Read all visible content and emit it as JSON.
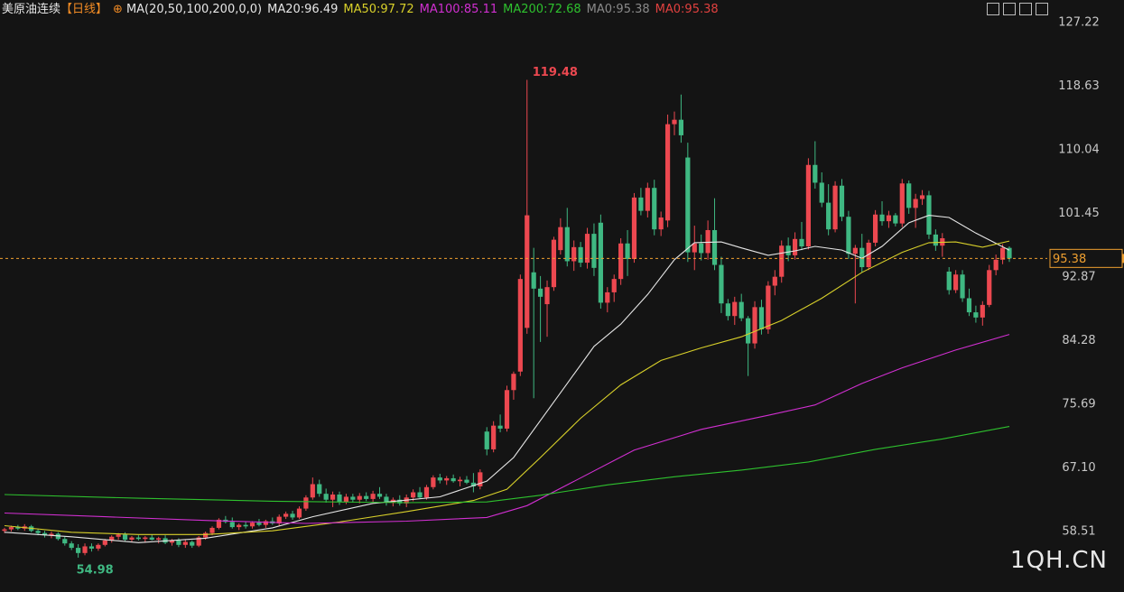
{
  "chart_data": {
    "type": "candlestick",
    "title": "美原油连续",
    "period": "【日线】",
    "indicator": "MA(20,50,100,200,0,0)",
    "up_color": "#ec4850",
    "down_color": "#3fb882",
    "ylim": [
      50.34,
      127.83
    ],
    "yticks": [
      58.51,
      {
        "value": 67.1,
        "label": "67.10"
      },
      75.69,
      84.28,
      92.87,
      101.45,
      110.04,
      118.63,
      127.22
    ],
    "candles": [
      [
        58.6,
        59.0,
        58.3,
        58.8
      ],
      [
        58.8,
        59.3,
        58.5,
        59.1
      ],
      [
        59.1,
        59.4,
        58.7,
        58.9
      ],
      [
        58.9,
        59.5,
        58.6,
        59.2
      ],
      [
        59.2,
        59.4,
        58.4,
        58.6
      ],
      [
        58.6,
        58.9,
        58.0,
        58.3
      ],
      [
        58.3,
        58.6,
        57.7,
        58.0
      ],
      [
        58.0,
        58.5,
        57.6,
        58.2
      ],
      [
        58.2,
        58.4,
        57.3,
        57.5
      ],
      [
        57.5,
        57.8,
        56.6,
        56.9
      ],
      [
        56.9,
        57.2,
        56.0,
        56.3
      ],
      [
        56.3,
        56.8,
        54.98,
        55.6
      ],
      [
        55.6,
        56.9,
        55.3,
        56.5
      ],
      [
        56.5,
        56.9,
        55.8,
        56.2
      ],
      [
        56.2,
        56.9,
        55.9,
        56.7
      ],
      [
        56.7,
        57.5,
        56.5,
        57.3
      ],
      [
        57.3,
        58.0,
        57.0,
        57.8
      ],
      [
        57.8,
        58.3,
        57.4,
        58.1
      ],
      [
        58.1,
        58.4,
        57.2,
        57.4
      ],
      [
        57.4,
        57.9,
        57.1,
        57.7
      ],
      [
        57.7,
        58.0,
        57.3,
        57.5
      ],
      [
        57.5,
        57.9,
        57.0,
        57.7
      ],
      [
        57.7,
        58.1,
        57.3,
        57.4
      ],
      [
        57.4,
        57.8,
        56.9,
        57.6
      ],
      [
        57.6,
        58.0,
        56.8,
        57.0
      ],
      [
        57.0,
        57.5,
        56.6,
        57.3
      ],
      [
        57.3,
        57.6,
        56.4,
        56.7
      ],
      [
        56.7,
        57.4,
        56.3,
        57.1
      ],
      [
        57.1,
        57.3,
        56.3,
        56.6
      ],
      [
        56.6,
        57.9,
        56.4,
        57.7
      ],
      [
        57.7,
        58.5,
        57.4,
        58.3
      ],
      [
        58.3,
        59.2,
        58.0,
        59.0
      ],
      [
        59.0,
        60.3,
        58.8,
        60.1
      ],
      [
        60.1,
        60.6,
        59.6,
        59.8
      ],
      [
        59.8,
        60.4,
        58.9,
        59.1
      ],
      [
        59.1,
        59.6,
        58.7,
        59.4
      ],
      [
        59.4,
        59.8,
        58.9,
        59.2
      ],
      [
        59.2,
        59.9,
        58.9,
        59.7
      ],
      [
        59.7,
        60.2,
        59.2,
        59.4
      ],
      [
        59.4,
        60.1,
        59.0,
        59.9
      ],
      [
        59.9,
        60.4,
        59.4,
        59.6
      ],
      [
        59.6,
        60.8,
        59.3,
        60.5
      ],
      [
        60.5,
        61.2,
        60.2,
        60.9
      ],
      [
        60.9,
        61.3,
        60.1,
        60.4
      ],
      [
        60.4,
        61.9,
        60.2,
        61.6
      ],
      [
        61.6,
        63.4,
        61.3,
        63.1
      ],
      [
        63.1,
        65.8,
        62.8,
        64.9
      ],
      [
        64.9,
        65.5,
        63.2,
        63.6
      ],
      [
        63.6,
        64.3,
        62.4,
        62.8
      ],
      [
        62.8,
        63.9,
        61.8,
        63.5
      ],
      [
        63.5,
        63.9,
        62.1,
        62.5
      ],
      [
        62.5,
        63.6,
        62.2,
        63.2
      ],
      [
        63.2,
        63.6,
        62.4,
        62.8
      ],
      [
        62.8,
        63.7,
        62.3,
        63.3
      ],
      [
        63.3,
        63.8,
        62.6,
        62.9
      ],
      [
        62.9,
        64.0,
        62.5,
        63.6
      ],
      [
        63.6,
        64.5,
        62.9,
        63.2
      ],
      [
        63.2,
        63.6,
        62.0,
        62.4
      ],
      [
        62.4,
        63.1,
        61.9,
        62.8
      ],
      [
        62.8,
        63.4,
        62.0,
        62.3
      ],
      [
        62.3,
        63.5,
        61.8,
        63.1
      ],
      [
        63.1,
        64.2,
        62.6,
        63.8
      ],
      [
        63.8,
        64.5,
        62.9,
        63.1
      ],
      [
        63.1,
        64.8,
        62.8,
        64.5
      ],
      [
        64.5,
        66.1,
        64.2,
        65.8
      ],
      [
        65.8,
        66.3,
        65.0,
        65.4
      ],
      [
        65.4,
        66.0,
        64.8,
        65.7
      ],
      [
        65.7,
        66.2,
        65.1,
        65.3
      ],
      [
        65.3,
        65.9,
        64.6,
        65.5
      ],
      [
        65.5,
        66.0,
        64.9,
        65.1
      ],
      [
        65.1,
        66.4,
        63.8,
        64.6
      ],
      [
        64.6,
        66.9,
        64.2,
        66.5
      ],
      [
        72.0,
        72.6,
        68.8,
        69.6
      ],
      [
        69.6,
        73.4,
        69.2,
        72.8
      ],
      [
        72.8,
        74.3,
        71.9,
        72.4
      ],
      [
        72.4,
        78.2,
        72.0,
        77.6
      ],
      [
        77.6,
        80.1,
        76.3,
        79.8
      ],
      [
        80.1,
        93.2,
        79.5,
        92.6
      ],
      [
        86.0,
        119.48,
        85.2,
        101.2
      ],
      [
        93.5,
        96.8,
        76.5,
        91.3
      ],
      [
        91.3,
        93.0,
        84.1,
        90.2
      ],
      [
        89.2,
        92.4,
        84.8,
        91.5
      ],
      [
        91.5,
        98.3,
        91.0,
        97.9
      ],
      [
        96.5,
        100.8,
        95.9,
        99.6
      ],
      [
        99.6,
        102.2,
        94.3,
        95.0
      ],
      [
        95.0,
        97.8,
        93.7,
        96.9
      ],
      [
        96.9,
        97.6,
        94.2,
        94.8
      ],
      [
        94.8,
        99.5,
        94.0,
        98.7
      ],
      [
        98.7,
        100.1,
        93.0,
        94.1
      ],
      [
        100.2,
        101.3,
        88.6,
        89.4
      ],
      [
        89.4,
        91.5,
        88.1,
        90.8
      ],
      [
        90.8,
        93.2,
        89.5,
        92.6
      ],
      [
        92.6,
        98.1,
        91.8,
        97.4
      ],
      [
        97.4,
        99.2,
        93.0,
        95.3
      ],
      [
        95.3,
        104.2,
        94.8,
        103.6
      ],
      [
        103.6,
        104.9,
        101.2,
        101.8
      ],
      [
        101.8,
        105.6,
        100.9,
        104.9
      ],
      [
        104.9,
        106.0,
        98.5,
        99.3
      ],
      [
        99.3,
        101.7,
        98.4,
        100.9
      ],
      [
        100.5,
        114.8,
        99.6,
        113.5
      ],
      [
        113.5,
        115.2,
        112.0,
        114.1
      ],
      [
        114.1,
        117.5,
        111.0,
        112.0
      ],
      [
        109.0,
        111.0,
        94.9,
        96.2
      ],
      [
        96.2,
        99.8,
        93.8,
        97.4
      ],
      [
        97.4,
        98.6,
        95.1,
        96.1
      ],
      [
        96.1,
        100.5,
        95.2,
        99.2
      ],
      [
        99.2,
        103.5,
        93.8,
        94.5
      ],
      [
        94.5,
        95.6,
        88.0,
        89.3
      ],
      [
        89.3,
        89.9,
        87.0,
        87.6
      ],
      [
        87.6,
        90.2,
        86.4,
        89.5
      ],
      [
        89.5,
        90.6,
        86.9,
        87.3
      ],
      [
        87.3,
        87.6,
        79.5,
        83.9
      ],
      [
        83.9,
        89.6,
        83.2,
        88.8
      ],
      [
        88.8,
        89.8,
        85.1,
        85.8
      ],
      [
        85.8,
        92.3,
        85.2,
        91.7
      ],
      [
        91.7,
        93.8,
        90.4,
        92.9
      ],
      [
        92.9,
        97.8,
        92.1,
        97.1
      ],
      [
        97.1,
        98.2,
        95.0,
        95.8
      ],
      [
        95.8,
        98.9,
        95.2,
        98.0
      ],
      [
        98.0,
        100.3,
        96.5,
        97.0
      ],
      [
        97.0,
        108.9,
        96.6,
        108.0
      ],
      [
        108.0,
        111.2,
        104.8,
        105.6
      ],
      [
        105.6,
        107.0,
        102.3,
        102.9
      ],
      [
        102.9,
        105.4,
        98.5,
        99.3
      ],
      [
        99.3,
        105.8,
        98.9,
        105.2
      ],
      [
        105.2,
        106.1,
        100.4,
        101.0
      ],
      [
        101.0,
        101.8,
        95.3,
        96.0
      ],
      [
        96.0,
        97.2,
        89.3,
        96.8
      ],
      [
        96.8,
        98.7,
        93.5,
        94.2
      ],
      [
        94.2,
        97.9,
        93.8,
        97.5
      ],
      [
        97.5,
        101.9,
        97.0,
        101.3
      ],
      [
        101.3,
        103.1,
        99.8,
        100.4
      ],
      [
        100.4,
        101.8,
        99.5,
        101.2
      ],
      [
        101.2,
        101.5,
        99.7,
        100.1
      ],
      [
        100.1,
        106.1,
        99.6,
        105.5
      ],
      [
        105.5,
        105.9,
        101.4,
        102.2
      ],
      [
        102.2,
        104.1,
        99.5,
        103.4
      ],
      [
        103.4,
        104.6,
        102.6,
        103.9
      ],
      [
        103.9,
        104.5,
        98.0,
        98.6
      ],
      [
        98.6,
        99.3,
        96.4,
        97.1
      ],
      [
        97.1,
        98.8,
        95.6,
        98.1
      ],
      [
        93.6,
        94.2,
        90.5,
        91.1
      ],
      [
        91.1,
        93.8,
        90.7,
        93.2
      ],
      [
        93.2,
        93.8,
        89.5,
        90.0
      ],
      [
        90.0,
        91.3,
        87.6,
        88.1
      ],
      [
        88.1,
        89.0,
        86.7,
        87.4
      ],
      [
        87.4,
        89.6,
        86.3,
        89.1
      ],
      [
        89.1,
        94.5,
        88.8,
        93.8
      ],
      [
        93.8,
        95.9,
        93.1,
        95.2
      ],
      [
        95.2,
        97.3,
        94.6,
        96.8
      ],
      [
        96.8,
        97.0,
        94.9,
        95.38
      ]
    ],
    "series": [
      {
        "name": "MA20:96.49",
        "color": "#e6e6e6",
        "x": [
          0,
          10,
          20,
          30,
          40,
          46,
          55,
          65,
          72,
          76,
          80,
          84,
          88,
          92,
          96,
          100,
          103,
          107,
          110,
          114,
          118,
          121,
          125,
          128,
          131,
          135,
          138,
          141,
          145,
          150
        ],
        "values": [
          58.4,
          57.8,
          57.0,
          57.6,
          59.0,
          60.5,
          62.3,
          63.2,
          65.3,
          68.5,
          73.5,
          78.5,
          83.5,
          86.5,
          90.5,
          95.2,
          97.5,
          97.6,
          96.8,
          95.8,
          96.4,
          97.0,
          96.5,
          95.4,
          97.0,
          100.2,
          101.2,
          100.9,
          98.8,
          96.49
        ]
      },
      {
        "name": "MA50:97.72",
        "color": "#d8d02a",
        "x": [
          0,
          10,
          20,
          30,
          40,
          50,
          60,
          70,
          75,
          80,
          86,
          92,
          98,
          104,
          110,
          116,
          122,
          128,
          134,
          138,
          142,
          146,
          150
        ],
        "values": [
          59.3,
          58.4,
          58.1,
          58.1,
          58.6,
          59.8,
          61.2,
          62.7,
          64.2,
          68.5,
          73.8,
          78.3,
          81.6,
          83.3,
          84.8,
          87.0,
          90.0,
          93.5,
          96.2,
          97.5,
          97.6,
          96.9,
          97.72
        ]
      },
      {
        "name": "MA100:85.11",
        "color": "#d12fd1",
        "x": [
          0,
          15,
          30,
          45,
          60,
          72,
          78,
          84,
          94,
          104,
          114,
          121,
          128,
          134,
          142,
          150
        ],
        "values": [
          61.0,
          60.5,
          60.0,
          59.6,
          59.9,
          60.4,
          62.0,
          64.8,
          69.5,
          72.3,
          74.2,
          75.6,
          78.5,
          80.6,
          83.0,
          85.11
        ]
      },
      {
        "name": "MA200:72.68",
        "color": "#2ec12e",
        "x": [
          0,
          20,
          40,
          60,
          72,
          80,
          90,
          100,
          110,
          120,
          130,
          140,
          150
        ],
        "values": [
          63.5,
          63.0,
          62.6,
          62.4,
          62.5,
          63.4,
          64.8,
          65.9,
          66.8,
          67.9,
          69.6,
          71.0,
          72.68
        ]
      }
    ],
    "extra_labels": [
      {
        "name": "MA0:95.38",
        "color": "#8a8a8a"
      },
      {
        "name": "MA0:95.38",
        "color": "#e0413f"
      }
    ],
    "last_price": 95.38,
    "last_price_color": "#f0a030",
    "watermark": "1QH.CN"
  }
}
